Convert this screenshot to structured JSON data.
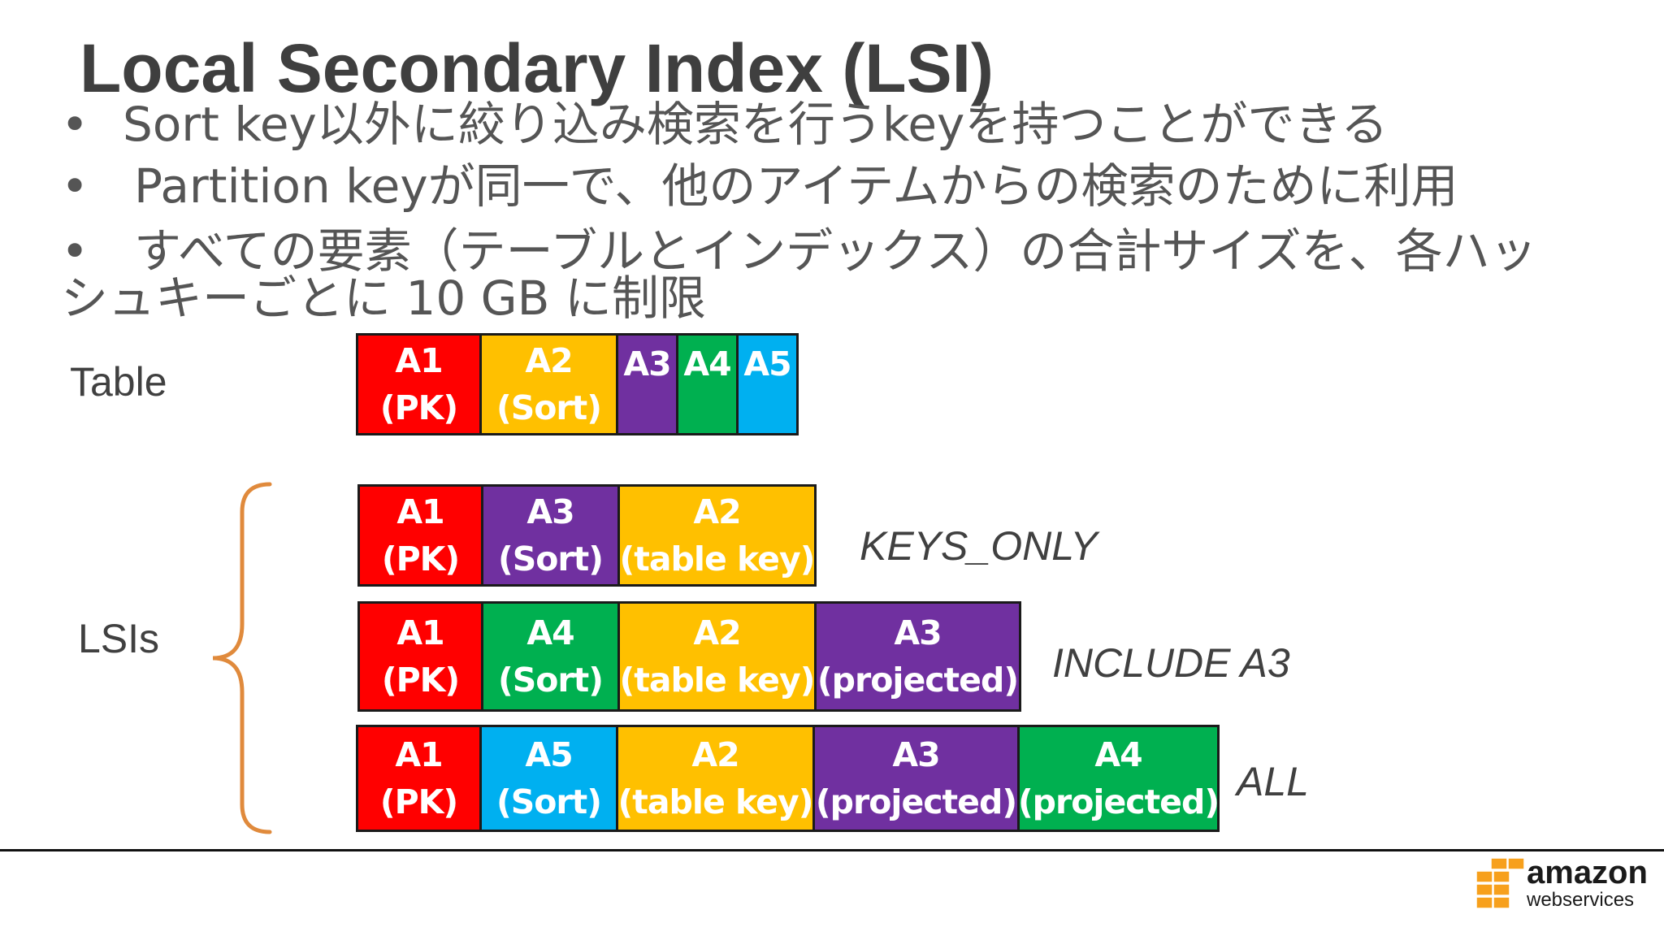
{
  "slide": {
    "title": "Local Secondary Index (LSI)",
    "bullets": [
      {
        "marker": "•",
        "lines": [
          "Sort key以外に絞り込み検索を行うkeyを持つことができる"
        ]
      },
      {
        "marker": "•",
        "lines": [
          "Partition keyが同一で、他のアイテムからの検索のために利用"
        ]
      },
      {
        "marker": "•",
        "lines": [
          "すべての要素（テーブルとインデックス）の合計サイズを、各ハッ",
          "シュキーごとに 10 GB に制限"
        ]
      }
    ]
  },
  "diagram": {
    "table_label": "Table",
    "lsis_label": "LSIs",
    "colors": {
      "red": "#ff0000",
      "yellow": "#ffc000",
      "purple": "#7030a0",
      "green": "#00b050",
      "blue": "#00b0f0",
      "brace": "#e08a3c"
    },
    "table_row": {
      "cells": [
        {
          "name": "A1",
          "role": "(PK)",
          "color": "red"
        },
        {
          "name": "A2",
          "role": "(Sort)",
          "color": "yellow"
        },
        {
          "name": "A3",
          "role": "",
          "color": "purple"
        },
        {
          "name": "A4",
          "role": "",
          "color": "green"
        },
        {
          "name": "A5",
          "role": "",
          "color": "blue"
        }
      ]
    },
    "lsi_rows": [
      {
        "projection": "KEYS_ONLY",
        "cells": [
          {
            "name": "A1",
            "role": "(PK)",
            "color": "red"
          },
          {
            "name": "A3",
            "role": "(Sort)",
            "color": "purple"
          },
          {
            "name": "A2",
            "role": "(table key)",
            "color": "yellow"
          }
        ]
      },
      {
        "projection": "INCLUDE A3",
        "cells": [
          {
            "name": "A1",
            "role": "(PK)",
            "color": "red"
          },
          {
            "name": "A4",
            "role": "(Sort)",
            "color": "green"
          },
          {
            "name": "A2",
            "role": "(table key)",
            "color": "yellow"
          },
          {
            "name": "A3",
            "role": "(projected)",
            "color": "purple"
          }
        ]
      },
      {
        "projection": "ALL",
        "cells": [
          {
            "name": "A1",
            "role": "(PK)",
            "color": "red"
          },
          {
            "name": "A5",
            "role": "(Sort)",
            "color": "blue"
          },
          {
            "name": "A2",
            "role": "(table key)",
            "color": "yellow"
          },
          {
            "name": "A3",
            "role": "(projected)",
            "color": "purple"
          },
          {
            "name": "A4",
            "role": "(projected)",
            "color": "green"
          }
        ]
      }
    ]
  },
  "branding": {
    "logo_name": "amazon-web-services-logo",
    "logo_text": "amazon",
    "logo_sub": "webservices",
    "logo_color": "#f7a01c"
  }
}
